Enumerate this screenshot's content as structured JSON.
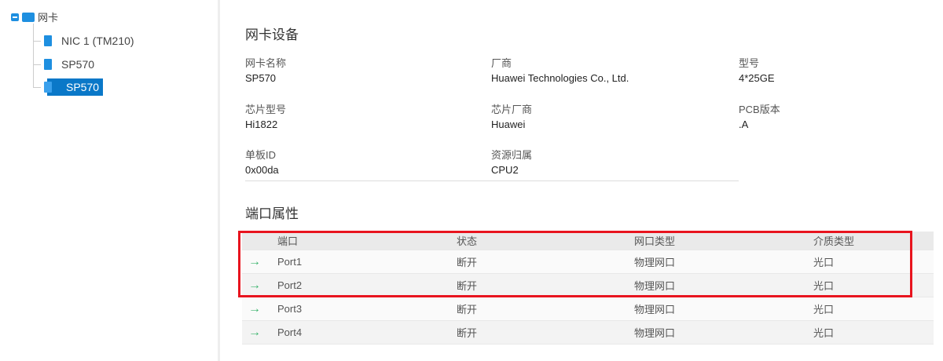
{
  "tree": {
    "root": "网卡",
    "items": [
      {
        "label": "NIC 1 (TM210)",
        "selected": false
      },
      {
        "label": "SP570",
        "selected": false
      },
      {
        "label": "SP570",
        "selected": true
      }
    ]
  },
  "device": {
    "title": "网卡设备",
    "fields": [
      {
        "label": "网卡名称",
        "value": "SP570"
      },
      {
        "label": "厂商",
        "value": "Huawei Technologies Co., Ltd."
      },
      {
        "label": "型号",
        "value": "4*25GE"
      },
      {
        "label": "芯片型号",
        "value": "Hi1822"
      },
      {
        "label": "芯片厂商",
        "value": "Huawei"
      },
      {
        "label": "PCB版本",
        "value": ".A"
      },
      {
        "label": "单板ID",
        "value": "0x00da"
      },
      {
        "label": "资源归属",
        "value": "CPU2"
      }
    ]
  },
  "ports": {
    "title": "端口属性",
    "headers": [
      "端口",
      "状态",
      "网口类型",
      "介质类型"
    ],
    "rows": [
      [
        "Port1",
        "断开",
        "物理网口",
        "光口"
      ],
      [
        "Port2",
        "断开",
        "物理网口",
        "光口"
      ],
      [
        "Port3",
        "断开",
        "物理网口",
        "光口"
      ],
      [
        "Port4",
        "断开",
        "物理网口",
        "光口"
      ]
    ]
  },
  "colors": {
    "accent": "#0a78c8",
    "highlight": "#e8141e",
    "arrow": "#3cb46e"
  }
}
